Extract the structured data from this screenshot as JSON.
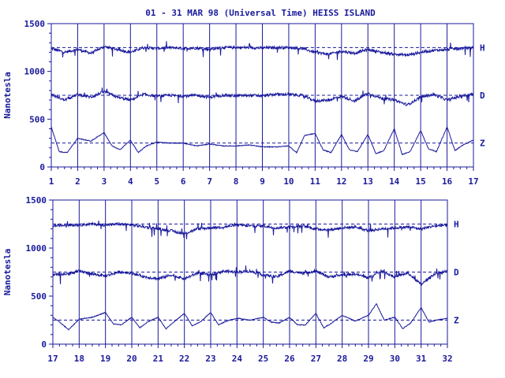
{
  "chart_data": [
    {
      "type": "line",
      "title": "01 - 31 MAR 98 (Universal Time) HEISS ISLAND",
      "ylabel": "Nanotesla",
      "ylim": [
        0,
        1500
      ],
      "yticks": [
        0,
        500,
        1000,
        1500
      ],
      "xlim": [
        1,
        17
      ],
      "xticks": [
        1,
        2,
        3,
        4,
        5,
        6,
        7,
        8,
        9,
        10,
        11,
        12,
        13,
        14,
        15,
        16,
        17
      ],
      "grid": "vertical lines at each day",
      "reference_lines": [
        1250,
        750,
        250
      ],
      "series": [
        {
          "name": "H",
          "baseline": 1250,
          "x": [
            1,
            1.5,
            2,
            2.5,
            3,
            3.5,
            4,
            4.5,
            5,
            5.5,
            6,
            6.5,
            7,
            7.5,
            8,
            8.5,
            9,
            9.5,
            10,
            10.5,
            11,
            11.5,
            12,
            12.5,
            13,
            13.5,
            14,
            14.5,
            15,
            15.5,
            16,
            16.5,
            17
          ],
          "values": [
            1240,
            1200,
            1230,
            1190,
            1260,
            1230,
            1200,
            1250,
            1240,
            1250,
            1240,
            1245,
            1230,
            1250,
            1250,
            1250,
            1245,
            1250,
            1250,
            1240,
            1200,
            1180,
            1210,
            1190,
            1230,
            1200,
            1180,
            1170,
            1200,
            1220,
            1230,
            1240,
            1250
          ]
        },
        {
          "name": "D",
          "baseline": 750,
          "x": [
            1,
            1.5,
            2,
            2.5,
            3,
            3.5,
            4,
            4.5,
            5,
            5.5,
            6,
            6.5,
            7,
            7.5,
            8,
            8.5,
            9,
            9.5,
            10,
            10.5,
            11,
            11.5,
            12,
            12.5,
            13,
            13.5,
            14,
            14.5,
            15,
            15.5,
            16,
            16.5,
            17
          ],
          "values": [
            760,
            700,
            760,
            730,
            790,
            730,
            700,
            760,
            740,
            750,
            740,
            750,
            730,
            750,
            745,
            750,
            745,
            760,
            760,
            750,
            690,
            700,
            740,
            690,
            770,
            720,
            700,
            650,
            730,
            760,
            700,
            740,
            760
          ]
        },
        {
          "name": "Z",
          "baseline": 250,
          "x": [
            1,
            1.3,
            1.6,
            2,
            2.5,
            3,
            3.3,
            3.6,
            4,
            4.3,
            4.6,
            5,
            5.5,
            6,
            6.5,
            7,
            7.5,
            8,
            8.5,
            9,
            9.5,
            10,
            10.3,
            10.6,
            11,
            11.3,
            11.6,
            12,
            12.3,
            12.6,
            13,
            13.3,
            13.6,
            14,
            14.3,
            14.6,
            15,
            15.3,
            15.6,
            16,
            16.3,
            16.6,
            17
          ],
          "values": [
            420,
            160,
            150,
            300,
            270,
            360,
            220,
            180,
            280,
            150,
            220,
            260,
            250,
            250,
            220,
            240,
            220,
            220,
            230,
            210,
            210,
            220,
            150,
            330,
            350,
            180,
            150,
            340,
            180,
            160,
            340,
            140,
            170,
            400,
            130,
            160,
            380,
            190,
            160,
            420,
            170,
            230,
            280
          ]
        }
      ]
    },
    {
      "type": "line",
      "ylabel": "Nanotesla",
      "ylim": [
        0,
        1500
      ],
      "yticks": [
        0,
        500,
        1000,
        1500
      ],
      "xlim": [
        17,
        32
      ],
      "xticks": [
        17,
        18,
        19,
        20,
        21,
        22,
        23,
        24,
        25,
        26,
        27,
        28,
        29,
        30,
        31,
        32
      ],
      "grid": "vertical lines at each day",
      "reference_lines": [
        1250,
        750,
        250
      ],
      "series": [
        {
          "name": "H",
          "baseline": 1250,
          "x": [
            17,
            17.5,
            18,
            18.5,
            19,
            19.5,
            20,
            20.5,
            21,
            21.5,
            22,
            22.5,
            23,
            23.5,
            24,
            24.5,
            25,
            25.5,
            26,
            26.5,
            27,
            27.5,
            28,
            28.5,
            29,
            29.5,
            30,
            30.5,
            31,
            31.5,
            32
          ],
          "values": [
            1230,
            1240,
            1240,
            1250,
            1240,
            1250,
            1240,
            1220,
            1200,
            1180,
            1150,
            1200,
            1210,
            1220,
            1240,
            1230,
            1230,
            1210,
            1220,
            1230,
            1200,
            1190,
            1210,
            1220,
            1180,
            1200,
            1210,
            1220,
            1200,
            1230,
            1240
          ]
        },
        {
          "name": "D",
          "baseline": 750,
          "x": [
            17,
            17.5,
            18,
            18.5,
            19,
            19.5,
            20,
            20.5,
            21,
            21.5,
            22,
            22.5,
            23,
            23.5,
            24,
            24.5,
            25,
            25.5,
            26,
            26.5,
            27,
            27.5,
            28,
            28.5,
            29,
            29.5,
            30,
            30.5,
            31,
            31.5,
            32
          ],
          "values": [
            720,
            730,
            760,
            730,
            710,
            750,
            740,
            700,
            680,
            720,
            680,
            740,
            720,
            760,
            750,
            760,
            720,
            700,
            760,
            740,
            760,
            700,
            720,
            730,
            690,
            760,
            700,
            740,
            620,
            730,
            760
          ]
        },
        {
          "name": "Z",
          "baseline": 250,
          "x": [
            17,
            17.3,
            17.6,
            18,
            18.5,
            19,
            19.3,
            19.6,
            20,
            20.3,
            20.6,
            21,
            21.3,
            21.6,
            22,
            22.3,
            22.6,
            23,
            23.3,
            23.6,
            24,
            24.5,
            25,
            25.3,
            25.6,
            26,
            26.3,
            26.6,
            27,
            27.3,
            27.6,
            28,
            28.5,
            29,
            29.3,
            29.6,
            30,
            30.3,
            30.6,
            31,
            31.3,
            31.6,
            32
          ],
          "values": [
            280,
            220,
            150,
            260,
            280,
            330,
            210,
            200,
            280,
            170,
            230,
            280,
            160,
            230,
            320,
            190,
            230,
            330,
            200,
            240,
            270,
            250,
            280,
            230,
            220,
            280,
            200,
            200,
            320,
            170,
            220,
            300,
            240,
            300,
            420,
            250,
            280,
            160,
            220,
            380,
            230,
            250,
            270
          ]
        }
      ]
    }
  ]
}
